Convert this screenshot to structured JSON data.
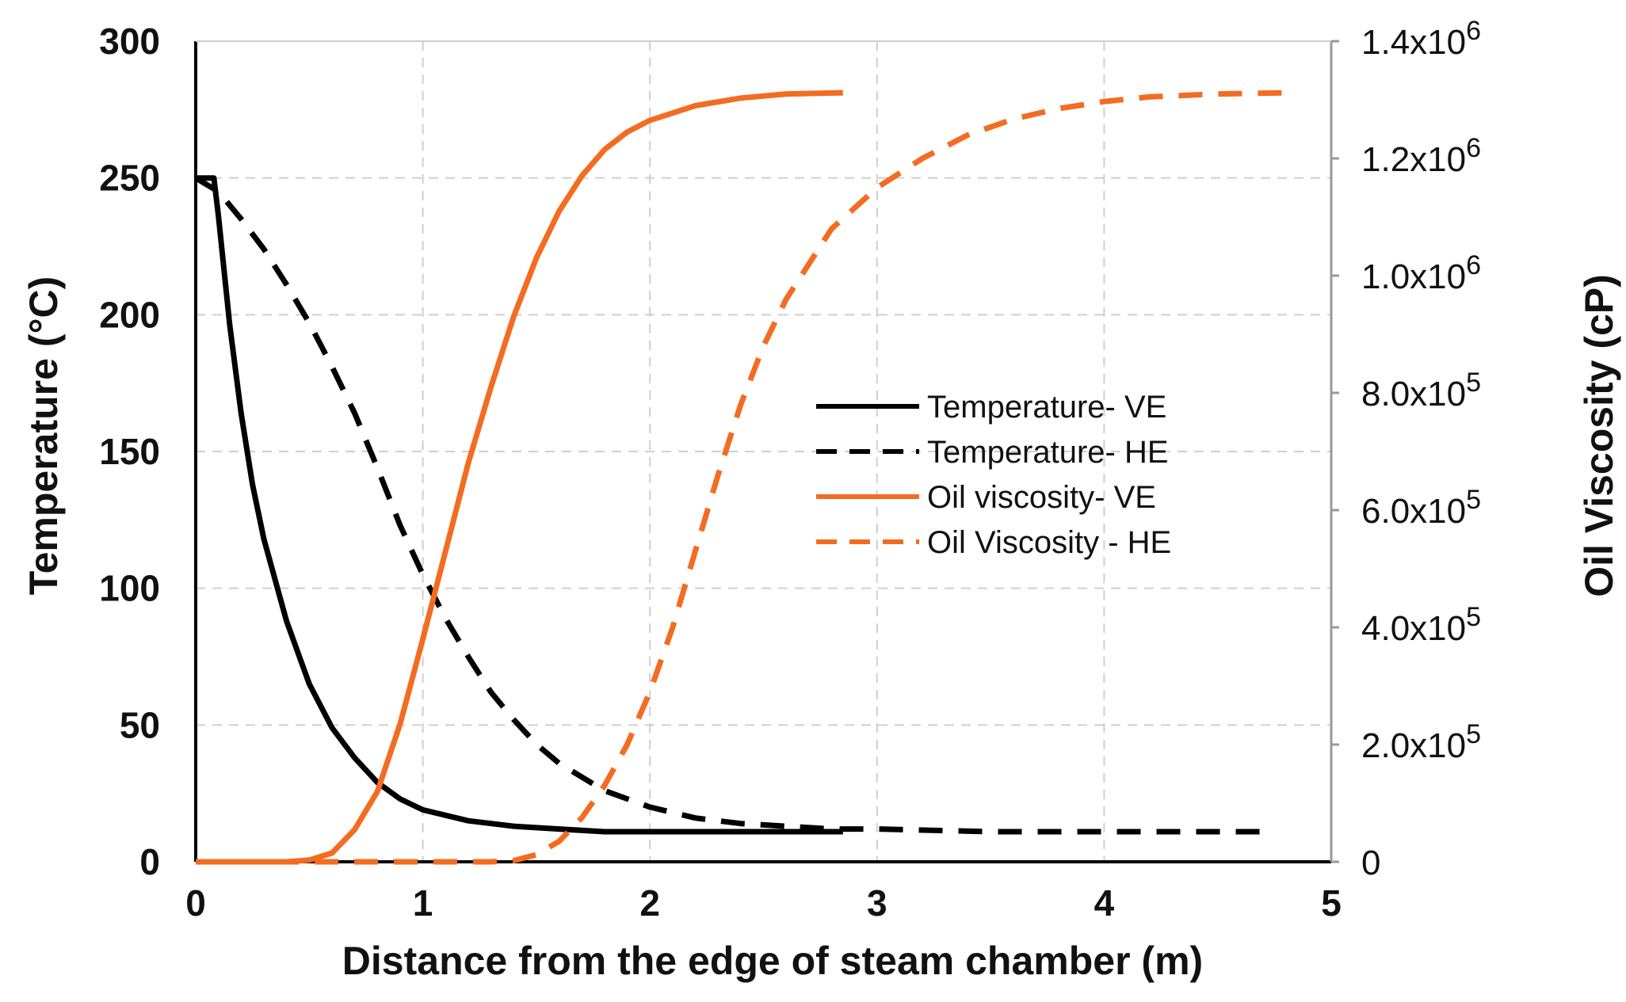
{
  "chart_data": {
    "type": "line",
    "title": "",
    "xlabel": "Distance from the edge of steam chamber (m)",
    "ylabel": "Temperature (°C)",
    "y2label": "Oil Viscosity (cP)",
    "xlim": [
      0,
      5
    ],
    "ylim": [
      0,
      300
    ],
    "y2lim": [
      0,
      1400000
    ],
    "grid": true,
    "legend_position": "center-right",
    "x_ticks": [
      "0",
      "1",
      "2",
      "3",
      "4",
      "5"
    ],
    "y_ticks": [
      "0",
      "50",
      "100",
      "150",
      "200",
      "250",
      "300"
    ],
    "y2_ticks": [
      {
        "mantissa": "0",
        "exp": ""
      },
      {
        "mantissa": "2.0x10",
        "exp": "5"
      },
      {
        "mantissa": "4.0x10",
        "exp": "5"
      },
      {
        "mantissa": "6.0x10",
        "exp": "5"
      },
      {
        "mantissa": "8.0x10",
        "exp": "5"
      },
      {
        "mantissa": "1.0x10",
        "exp": "6"
      },
      {
        "mantissa": "1.2x10",
        "exp": "6"
      },
      {
        "mantissa": "1.4x10",
        "exp": "6"
      }
    ],
    "series": [
      {
        "name": "Temperature- VE",
        "axis": "left",
        "color": "#000000",
        "dash": "solid",
        "x": [
          0,
          0.08,
          0.1,
          0.15,
          0.2,
          0.25,
          0.3,
          0.4,
          0.5,
          0.6,
          0.7,
          0.8,
          0.9,
          1.0,
          1.2,
          1.4,
          1.6,
          1.8,
          2.0,
          2.2,
          2.5,
          2.85
        ],
        "y": [
          250,
          250,
          236,
          196,
          164,
          138,
          118,
          88,
          65,
          49,
          38,
          29,
          23,
          19,
          15,
          13,
          12,
          11,
          11,
          11,
          11,
          11
        ]
      },
      {
        "name": "Temperature- HE",
        "axis": "left",
        "color": "#000000",
        "dash": "dashed",
        "x": [
          0,
          0.1,
          0.2,
          0.3,
          0.4,
          0.5,
          0.6,
          0.7,
          0.8,
          0.9,
          1.0,
          1.1,
          1.2,
          1.3,
          1.4,
          1.5,
          1.6,
          1.8,
          2.0,
          2.2,
          2.4,
          2.6,
          2.8,
          3.0,
          3.5,
          4.0,
          4.5,
          4.75
        ],
        "y": [
          250,
          245,
          235,
          224,
          211,
          197,
          181,
          164,
          144,
          123,
          105,
          89,
          75,
          62,
          52,
          43,
          36,
          26,
          20,
          16,
          14,
          13,
          12,
          12,
          11,
          11,
          11,
          11
        ]
      },
      {
        "name": "Oil viscosity- VE",
        "axis": "right",
        "color": "#f36c21",
        "dash": "solid",
        "x": [
          0,
          0.4,
          0.5,
          0.6,
          0.7,
          0.8,
          0.9,
          1.0,
          1.1,
          1.2,
          1.3,
          1.4,
          1.5,
          1.6,
          1.7,
          1.8,
          1.9,
          2.0,
          2.2,
          2.4,
          2.6,
          2.85
        ],
        "y": [
          0,
          0,
          3000,
          15000,
          55000,
          120000,
          235000,
          380000,
          530000,
          680000,
          810000,
          930000,
          1030000,
          1110000,
          1170000,
          1215000,
          1245000,
          1265000,
          1290000,
          1303000,
          1310000,
          1312000
        ]
      },
      {
        "name": "Oil Viscosity - HE",
        "axis": "right",
        "color": "#f36c21",
        "dash": "dashed",
        "x": [
          0,
          1.3,
          1.4,
          1.5,
          1.6,
          1.7,
          1.8,
          1.9,
          2.0,
          2.1,
          2.2,
          2.3,
          2.4,
          2.5,
          2.6,
          2.8,
          3.0,
          3.2,
          3.4,
          3.6,
          3.8,
          4.0,
          4.2,
          4.5,
          4.8
        ],
        "y": [
          0,
          0,
          2000,
          12000,
          35000,
          75000,
          130000,
          200000,
          290000,
          400000,
          530000,
          660000,
          780000,
          880000,
          960000,
          1080000,
          1150000,
          1200000,
          1240000,
          1267000,
          1285000,
          1297000,
          1305000,
          1310000,
          1312000
        ]
      }
    ]
  }
}
